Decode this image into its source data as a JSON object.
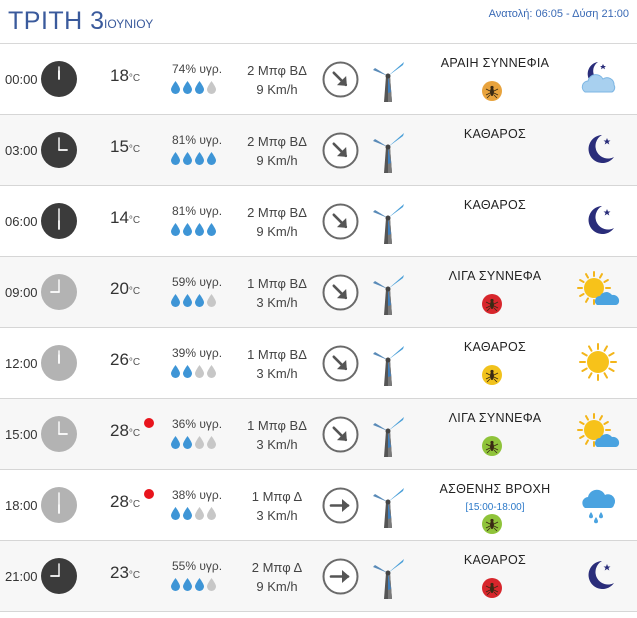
{
  "header": {
    "day": "ΤΡΙΤΗ 3",
    "month": "ΙΟΥΝΙΟΥ",
    "sun_times": "Ανατολή: 06:05 - Δύση 21:00"
  },
  "colors": {
    "title_blue": "#3a5a9c",
    "drop_blue": "#3e95d6",
    "drop_grey": "#c7c7c7",
    "heat_red": "#e8141c"
  },
  "rows": [
    {
      "time": "00:00",
      "temp": "18",
      "unit": "°C",
      "hum": "74% υγρ.",
      "drops": 3,
      "wind_force": "2 Μπφ ΒΔ",
      "wind_speed": "9 Km/h",
      "wind_dir": "ΒΔ",
      "cond": "ΑΡΑΙΗ ΣΥΝΝΕΦΙΑ",
      "period": "",
      "insect": "orange",
      "icon": "moon-cloud-icon",
      "clock": "dark",
      "heat": false
    },
    {
      "time": "03:00",
      "temp": "15",
      "unit": "°C",
      "hum": "81% υγρ.",
      "drops": 4,
      "wind_force": "2 Μπφ ΒΔ",
      "wind_speed": "9 Km/h",
      "wind_dir": "ΒΔ",
      "cond": "ΚΑΘΑΡΟΣ",
      "period": "",
      "insect": "",
      "icon": "moon-icon",
      "clock": "dark",
      "heat": false
    },
    {
      "time": "06:00",
      "temp": "14",
      "unit": "°C",
      "hum": "81% υγρ.",
      "drops": 4,
      "wind_force": "2 Μπφ ΒΔ",
      "wind_speed": "9 Km/h",
      "wind_dir": "ΒΔ",
      "cond": "ΚΑΘΑΡΟΣ",
      "period": "",
      "insect": "",
      "icon": "moon-icon",
      "clock": "dark",
      "heat": false
    },
    {
      "time": "09:00",
      "temp": "20",
      "unit": "°C",
      "hum": "59% υγρ.",
      "drops": 3,
      "wind_force": "1 Μπφ ΒΔ",
      "wind_speed": "3 Km/h",
      "wind_dir": "ΒΔ",
      "cond": "ΛΙΓΑ ΣΥΝΝΕΦΑ",
      "period": "",
      "insect": "red",
      "icon": "sun-cloud-icon",
      "clock": "light",
      "heat": false
    },
    {
      "time": "12:00",
      "temp": "26",
      "unit": "°C",
      "hum": "39% υγρ.",
      "drops": 2,
      "wind_force": "1 Μπφ ΒΔ",
      "wind_speed": "3 Km/h",
      "wind_dir": "ΒΔ",
      "cond": "ΚΑΘΑΡΟΣ",
      "period": "",
      "insect": "yellow",
      "icon": "sun-icon",
      "clock": "light",
      "heat": false
    },
    {
      "time": "15:00",
      "temp": "28",
      "unit": "°C",
      "hum": "36% υγρ.",
      "drops": 2,
      "wind_force": "1 Μπφ ΒΔ",
      "wind_speed": "3 Km/h",
      "wind_dir": "ΒΔ",
      "cond": "ΛΙΓΑ ΣΥΝΝΕΦΑ",
      "period": "",
      "insect": "green",
      "icon": "sun-cloud-icon",
      "clock": "light",
      "heat": true
    },
    {
      "time": "18:00",
      "temp": "28",
      "unit": "°C",
      "hum": "38% υγρ.",
      "drops": 2,
      "wind_force": "1 Μπφ Δ",
      "wind_speed": "3 Km/h",
      "wind_dir": "Δ",
      "cond": "ΑΣΘΕΝΗΣ ΒΡΟΧΗ",
      "period": "[15:00-18:00]",
      "insect": "green",
      "icon": "rain-cloud-icon",
      "clock": "light",
      "heat": true
    },
    {
      "time": "21:00",
      "temp": "23",
      "unit": "°C",
      "hum": "55% υγρ.",
      "drops": 3,
      "wind_force": "2 Μπφ Δ",
      "wind_speed": "9 Km/h",
      "wind_dir": "Δ",
      "cond": "ΚΑΘΑΡΟΣ",
      "period": "",
      "insect": "red",
      "icon": "moon-icon",
      "clock": "dark",
      "heat": false
    }
  ]
}
